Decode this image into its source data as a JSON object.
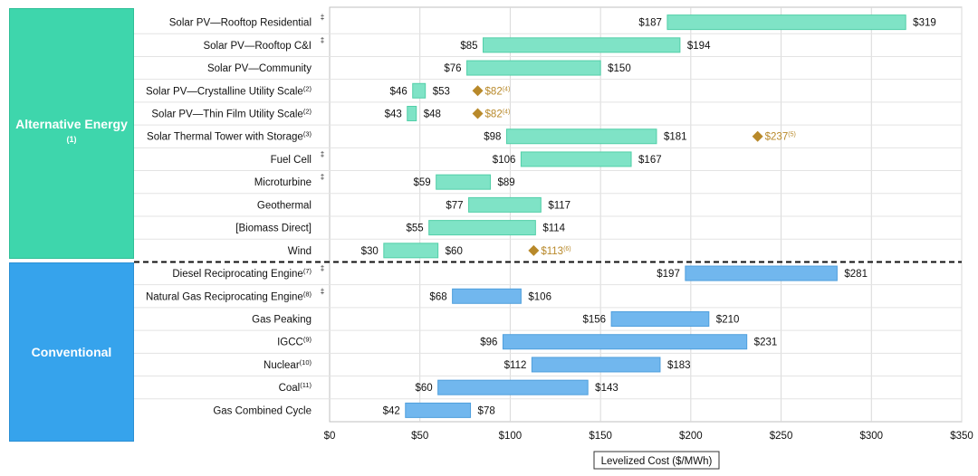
{
  "colors": {
    "alternative": "#7fe3c6",
    "alternative_stroke": "#52cfa8",
    "conventional": "#71b7ee",
    "conventional_stroke": "#4f9fdd",
    "marker": "#b8892a",
    "alt_panel": "#3ed6ac",
    "conv_panel": "#36a3ec"
  },
  "categories": {
    "alternative_label": "Alternative Energy",
    "alternative_note": "(1)",
    "conventional_label": "Conventional"
  },
  "chart_data": {
    "type": "bar",
    "orientation": "horizontal-range",
    "xlabel": "Levelized Cost ($/MWh)",
    "xlim": [
      0,
      350
    ],
    "xticks": [
      0,
      50,
      100,
      150,
      200,
      250,
      300,
      350
    ],
    "xtick_labels": [
      "$0",
      "$50",
      "$100",
      "$150",
      "$200",
      "$250",
      "$300",
      "$350"
    ],
    "rows": [
      {
        "label": "Solar PV—Rooftop Residential",
        "note": "",
        "mark": "‡",
        "group": "alternative",
        "low": 187,
        "high": 319,
        "low_label": "$187",
        "high_label": "$319"
      },
      {
        "label": "Solar PV—Rooftop C&I",
        "note": "",
        "mark": "‡",
        "group": "alternative",
        "low": 85,
        "high": 194,
        "low_label": "$85",
        "high_label": "$194"
      },
      {
        "label": "Solar PV—Community",
        "note": "",
        "mark": "",
        "group": "alternative",
        "low": 76,
        "high": 150,
        "low_label": "$76",
        "high_label": "$150"
      },
      {
        "label": "Solar PV—Crystalline Utility Scale",
        "note": "(2)",
        "mark": "",
        "group": "alternative",
        "low": 46,
        "high": 53,
        "low_label": "$46",
        "high_label": "$53",
        "marker": {
          "value": 82,
          "label": "$82",
          "note": "(4)"
        }
      },
      {
        "label": "Solar PV—Thin Film Utility Scale",
        "note": "(2)",
        "mark": "",
        "group": "alternative",
        "low": 43,
        "high": 48,
        "low_label": "$43",
        "high_label": "$48",
        "marker": {
          "value": 82,
          "label": "$82",
          "note": "(4)"
        }
      },
      {
        "label": "Solar Thermal Tower with Storage",
        "note": "(3)",
        "mark": "",
        "group": "alternative",
        "low": 98,
        "high": 181,
        "low_label": "$98",
        "high_label": "$181",
        "marker": {
          "value": 237,
          "label": "$237",
          "note": "(5)"
        }
      },
      {
        "label": "Fuel Cell",
        "note": "",
        "mark": "‡",
        "group": "alternative",
        "low": 106,
        "high": 167,
        "low_label": "$106",
        "high_label": "$167"
      },
      {
        "label": "Microturbine",
        "note": "",
        "mark": "‡",
        "group": "alternative",
        "low": 59,
        "high": 89,
        "low_label": "$59",
        "high_label": "$89"
      },
      {
        "label": "Geothermal",
        "note": "",
        "mark": "",
        "group": "alternative",
        "low": 77,
        "high": 117,
        "low_label": "$77",
        "high_label": "$117"
      },
      {
        "label": "[Biomass Direct]",
        "note": "",
        "mark": "",
        "group": "alternative",
        "low": 55,
        "high": 114,
        "low_label": "$55",
        "high_label": "$114"
      },
      {
        "label": "Wind",
        "note": "",
        "mark": "",
        "group": "alternative",
        "low": 30,
        "high": 60,
        "low_label": "$30",
        "high_label": "$60",
        "marker": {
          "value": 113,
          "label": "$113",
          "note": "(6)"
        }
      },
      {
        "label": "Diesel Reciprocating Engine",
        "note": "(7)",
        "mark": "‡",
        "group": "conventional",
        "low": 197,
        "high": 281,
        "low_label": "$197",
        "high_label": "$281"
      },
      {
        "label": "Natural Gas Reciprocating Engine",
        "note": "(8)",
        "mark": "‡",
        "group": "conventional",
        "low": 68,
        "high": 106,
        "low_label": "$68",
        "high_label": "$106"
      },
      {
        "label": "Gas Peaking",
        "note": "",
        "mark": "",
        "group": "conventional",
        "low": 156,
        "high": 210,
        "low_label": "$156",
        "high_label": "$210"
      },
      {
        "label": "IGCC",
        "note": "(9)",
        "mark": "",
        "group": "conventional",
        "low": 96,
        "high": 231,
        "low_label": "$96",
        "high_label": "$231"
      },
      {
        "label": "Nuclear",
        "note": "(10)",
        "mark": "",
        "group": "conventional",
        "low": 112,
        "high": 183,
        "low_label": "$112",
        "high_label": "$183"
      },
      {
        "label": "Coal",
        "note": "(11)",
        "mark": "",
        "group": "conventional",
        "low": 60,
        "high": 143,
        "low_label": "$60",
        "high_label": "$143"
      },
      {
        "label": "Gas Combined Cycle",
        "note": "",
        "mark": "",
        "group": "conventional",
        "low": 42,
        "high": 78,
        "low_label": "$42",
        "high_label": "$78"
      }
    ]
  }
}
